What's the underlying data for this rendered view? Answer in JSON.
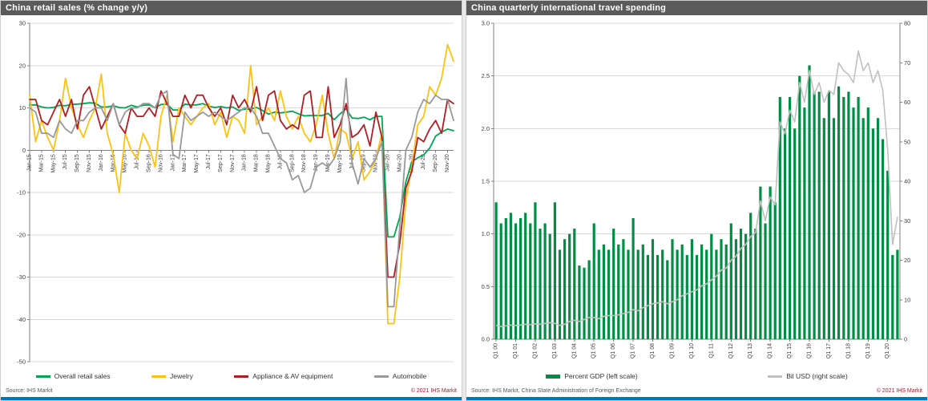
{
  "panels": [
    {
      "title": "China retail sales (% change y/y)",
      "source": "Source: IHS Markit",
      "copyright": "© 2021 IHS Markit"
    },
    {
      "title": "China quarterly international travel spending",
      "source": "Source: IHS Markit, China State Administration of Foreign Exchange",
      "copyright": "© 2021 IHS Markit"
    }
  ],
  "chart_data": [
    {
      "type": "line",
      "title": "China retail sales (% change y/y)",
      "ylim": [
        -50,
        30
      ],
      "yticks": [
        30,
        20,
        10,
        0,
        -10,
        -20,
        -30,
        -40,
        -50
      ],
      "grid": true,
      "legend_position": "bottom",
      "x_tick_step": 2,
      "x": [
        "Jan-15",
        "Feb-15",
        "Mar-15",
        "Apr-15",
        "May-15",
        "Jun-15",
        "Jul-15",
        "Aug-15",
        "Sep-15",
        "Oct-15",
        "Nov-15",
        "Dec-15",
        "Jan-16",
        "Feb-16",
        "Mar-16",
        "Apr-16",
        "May-16",
        "Jun-16",
        "Jul-16",
        "Aug-16",
        "Sep-16",
        "Oct-16",
        "Nov-16",
        "Dec-16",
        "Jan-17",
        "Feb-17",
        "Mar-17",
        "Apr-17",
        "May-17",
        "Jun-17",
        "Jul-17",
        "Aug-17",
        "Sep-17",
        "Oct-17",
        "Nov-17",
        "Dec-17",
        "Jan-18",
        "Feb-18",
        "Mar-18",
        "Apr-18",
        "May-18",
        "Jun-18",
        "Jul-18",
        "Aug-18",
        "Sep-18",
        "Oct-18",
        "Nov-18",
        "Dec-18",
        "Jan-19",
        "Feb-19",
        "Mar-19",
        "Apr-19",
        "May-19",
        "Jun-19",
        "Jul-19",
        "Aug-19",
        "Sep-19",
        "Oct-19",
        "Nov-19",
        "Dec-19",
        "Jan-20",
        "Feb-20",
        "Mar-20",
        "Apr-20",
        "May-20",
        "Jun-20",
        "Jul-20",
        "Aug-20",
        "Sep-20",
        "Oct-20",
        "Nov-20",
        "Dec-20"
      ],
      "series": [
        {
          "name": "Overall retail sales",
          "color": "#00a651",
          "values": [
            10.7,
            10.7,
            10.2,
            10.0,
            10.1,
            10.6,
            10.5,
            10.8,
            10.9,
            11.0,
            11.2,
            11.1,
            10.2,
            10.2,
            10.5,
            10.1,
            10.0,
            10.6,
            10.2,
            10.6,
            10.7,
            10.0,
            10.8,
            10.9,
            9.5,
            9.5,
            10.9,
            10.7,
            10.7,
            11.0,
            10.4,
            10.1,
            10.3,
            10.0,
            10.2,
            9.4,
            9.7,
            9.7,
            10.1,
            9.4,
            8.5,
            9.0,
            8.8,
            9.0,
            9.2,
            8.6,
            8.1,
            8.2,
            8.2,
            8.2,
            8.7,
            7.2,
            8.6,
            9.8,
            7.6,
            7.5,
            7.8,
            7.2,
            8.0,
            8.0,
            -20.5,
            -20.5,
            -15.8,
            -7.5,
            -2.8,
            -1.8,
            -1.1,
            0.5,
            3.3,
            4.3,
            5.0,
            4.6
          ]
        },
        {
          "name": "Jewelry",
          "color": "#ffc20e",
          "values": [
            13,
            2,
            7,
            3,
            0,
            7,
            17,
            10,
            6,
            3,
            7,
            10,
            18,
            4,
            -1,
            -10,
            4,
            0,
            -2,
            4,
            1,
            -4,
            8,
            13,
            2,
            10,
            8,
            6,
            8,
            10,
            11,
            6,
            9,
            3,
            8,
            7,
            4,
            20,
            6,
            8,
            10,
            7,
            14,
            8,
            5,
            8,
            4,
            2,
            6,
            13,
            4,
            -2,
            5,
            4,
            -2,
            2,
            -7,
            -5,
            -2,
            4,
            -41,
            -41,
            -30,
            -12,
            -4,
            6,
            8,
            15,
            13,
            17,
            25,
            21
          ]
        },
        {
          "name": "Appliance & AV equipment",
          "color": "#b01e24",
          "values": [
            12,
            12,
            7,
            6,
            9,
            12,
            8,
            12,
            5,
            13,
            15,
            10,
            5,
            8,
            11,
            6,
            4,
            10,
            8,
            8,
            10,
            8,
            14,
            11,
            8,
            8,
            13,
            10,
            13,
            13,
            10,
            8,
            10,
            6,
            13,
            10,
            12,
            9,
            15,
            7,
            13,
            14,
            7,
            5,
            6,
            5,
            13,
            14,
            3,
            3,
            15,
            3,
            6,
            11,
            3,
            4,
            6,
            1,
            9,
            3,
            -30,
            -30,
            -22,
            -9,
            -5,
            3,
            2,
            5,
            7,
            4,
            12,
            11
          ]
        },
        {
          "name": "Automobile",
          "color": "#97999b",
          "values": [
            10,
            9,
            4,
            4,
            3,
            7,
            5,
            4,
            7,
            7,
            9,
            10,
            10,
            7,
            11,
            6,
            9,
            10,
            10,
            11,
            11,
            10,
            13,
            14,
            -1,
            -2,
            9,
            7,
            8,
            9,
            8,
            9,
            8,
            7,
            8,
            9,
            10,
            10,
            8,
            4,
            4,
            1,
            -2,
            -3,
            -7,
            -6,
            -10,
            -9,
            -4,
            -3,
            -4,
            -2,
            2,
            17,
            -3,
            -8,
            -2,
            -4,
            -2,
            2,
            -37,
            -37,
            -18,
            0,
            3,
            9,
            12,
            11,
            13,
            12,
            12,
            7
          ]
        }
      ]
    },
    {
      "type": "bar+line",
      "title": "China quarterly international travel spending",
      "left_ylim": [
        0,
        3.0
      ],
      "left_yticks": [
        "0.0",
        "0.5",
        "1.0",
        "1.5",
        "2.0",
        "2.5",
        "3.0"
      ],
      "right_ylim": [
        0,
        80
      ],
      "right_yticks": [
        0,
        10,
        20,
        30,
        40,
        50,
        60,
        70,
        80
      ],
      "grid": true,
      "legend_position": "bottom",
      "x_tick_step": 4,
      "x": [
        "Q1 00",
        "Q2 00",
        "Q3 00",
        "Q4 00",
        "Q1 01",
        "Q2 01",
        "Q3 01",
        "Q4 01",
        "Q1 02",
        "Q2 02",
        "Q3 02",
        "Q4 02",
        "Q1 03",
        "Q2 03",
        "Q3 03",
        "Q4 03",
        "Q1 04",
        "Q2 04",
        "Q3 04",
        "Q4 04",
        "Q1 05",
        "Q2 05",
        "Q3 05",
        "Q4 05",
        "Q1 06",
        "Q2 06",
        "Q3 06",
        "Q4 06",
        "Q1 07",
        "Q2 07",
        "Q3 07",
        "Q4 07",
        "Q1 08",
        "Q2 08",
        "Q3 08",
        "Q4 08",
        "Q1 09",
        "Q2 09",
        "Q3 09",
        "Q4 09",
        "Q1 10",
        "Q2 10",
        "Q3 10",
        "Q4 10",
        "Q1 11",
        "Q2 11",
        "Q3 11",
        "Q4 11",
        "Q1 12",
        "Q2 12",
        "Q3 12",
        "Q4 12",
        "Q1 13",
        "Q2 13",
        "Q3 13",
        "Q4 13",
        "Q1 14",
        "Q2 14",
        "Q3 14",
        "Q4 14",
        "Q1 15",
        "Q2 15",
        "Q3 15",
        "Q4 15",
        "Q1 16",
        "Q2 16",
        "Q3 16",
        "Q4 16",
        "Q1 17",
        "Q2 17",
        "Q3 17",
        "Q4 17",
        "Q1 18",
        "Q2 18",
        "Q3 18",
        "Q4 18",
        "Q1 19",
        "Q2 19",
        "Q3 19",
        "Q4 19",
        "Q1 20",
        "Q2 20",
        "Q3 20"
      ],
      "series": [
        {
          "name": "Percent GDP (left scale)",
          "type": "bar",
          "axis": "left",
          "color": "#008e44",
          "values": [
            1.3,
            1.1,
            1.15,
            1.2,
            1.1,
            1.15,
            1.2,
            1.1,
            1.3,
            1.05,
            1.1,
            1.0,
            1.3,
            0.85,
            0.95,
            1.0,
            1.05,
            0.7,
            0.68,
            0.75,
            1.1,
            0.85,
            0.9,
            0.85,
            1.05,
            0.9,
            0.95,
            0.85,
            1.15,
            0.85,
            0.9,
            0.8,
            0.95,
            0.8,
            0.85,
            0.75,
            0.95,
            0.85,
            0.9,
            0.8,
            0.95,
            0.8,
            0.9,
            0.85,
            1.0,
            0.85,
            0.95,
            0.9,
            1.1,
            0.95,
            1.05,
            1.0,
            1.2,
            1.05,
            1.45,
            1.1,
            1.45,
            1.3,
            2.3,
            2.0,
            2.3,
            2.0,
            2.5,
            2.2,
            2.6,
            2.35,
            2.35,
            2.1,
            2.35,
            2.1,
            2.4,
            2.3,
            2.35,
            2.2,
            2.3,
            2.1,
            2.2,
            2.0,
            2.1,
            1.9,
            1.6,
            0.8,
            0.85
          ]
        },
        {
          "name": "Bil USD (right scale)",
          "type": "line",
          "axis": "right",
          "color": "#bfc0c2",
          "values": [
            3.5,
            3.2,
            3.4,
            3.6,
            3.5,
            3.6,
            3.8,
            3.7,
            3.9,
            3.8,
            4.0,
            4.2,
            4.0,
            3.5,
            3.8,
            4.5,
            4.8,
            4.5,
            5.0,
            5.5,
            5.5,
            5.2,
            5.8,
            6.0,
            6.0,
            6.2,
            6.5,
            6.8,
            7.5,
            7.2,
            8.0,
            8.5,
            9.0,
            9.2,
            9.5,
            9.0,
            9.5,
            10.0,
            11.0,
            11.5,
            12.0,
            12.5,
            13.5,
            14.0,
            15.0,
            16.0,
            17.5,
            18.0,
            20.0,
            21.0,
            23.0,
            24.0,
            26.0,
            27.0,
            35.0,
            30.0,
            36.0,
            34.0,
            55.0,
            52.0,
            58.0,
            55.0,
            65.0,
            60.0,
            68.0,
            62.0,
            65.0,
            60.0,
            63.0,
            62.0,
            70.0,
            68.0,
            67.0,
            65.0,
            73.0,
            68.0,
            70.0,
            65.0,
            68.0,
            63.0,
            48.0,
            24.0,
            31.0
          ]
        }
      ]
    }
  ]
}
